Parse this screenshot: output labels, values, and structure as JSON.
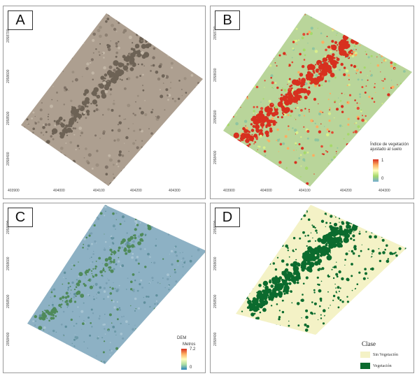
{
  "panels": [
    {
      "letter": "A",
      "yticks": [
        "2058700",
        "2058600",
        "2058500",
        "2058400"
      ],
      "xticks": [
        "403900",
        "404000",
        "404100",
        "404200",
        "404300"
      ]
    },
    {
      "letter": "B",
      "yticks": [
        "2058700",
        "2058600",
        "2058500",
        "2058400"
      ],
      "xticks": [
        "403900",
        "404000",
        "404100",
        "404200",
        "404300"
      ]
    },
    {
      "letter": "C",
      "yticks": [
        "2058700",
        "2058600",
        "2058500",
        "2058400"
      ],
      "xticks": []
    },
    {
      "letter": "D",
      "yticks": [
        "2058700",
        "2058600",
        "2058500",
        "2058400"
      ],
      "xticks": []
    }
  ],
  "legend_b": {
    "title": "Índice de vegetación ajustado al suelo",
    "max": "1",
    "min": "0"
  },
  "legend_c": {
    "title": "DEM",
    "unit": "Metros",
    "max": "7.2",
    "min": "0"
  },
  "legend_d": {
    "title": "Clase",
    "classes": [
      {
        "label": "Sin Vegetación",
        "color": "#f4f2c6"
      },
      {
        "label": "Vegetación",
        "color": "#0b6b2e"
      }
    ]
  },
  "colors": {
    "A_base": "#a89c8c",
    "B_base": "#b5d49a",
    "B_hot": "#d7301f",
    "C_base": "#8fb3c5",
    "C_green": "#4f8a5a",
    "D_bg": "#f4f2c6",
    "D_veg": "#0b6b2e"
  }
}
